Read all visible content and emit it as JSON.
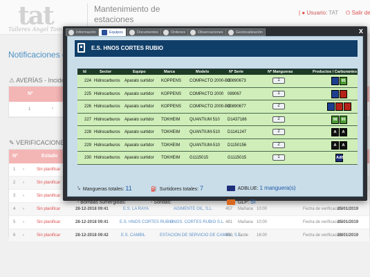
{
  "header": {
    "logo_mark": "tat",
    "logo_sub": "Talleres Angel Tom",
    "app_title": "Mantenimiento de estaciones",
    "user_label": "Usuario:",
    "user_value": "TAT",
    "exit_label": "Salir de"
  },
  "page": {
    "heading": "Notificaciones d",
    "averias_title": "AVERÍAS - Incide",
    "averias_col": "Nº",
    "averias_row_num": "1",
    "verif_title": "VERIFICACIONES",
    "verif_cols": [
      "Nº",
      "Estado"
    ],
    "verif_rows": [
      {
        "n": "1",
        "estado": "Sin planificar"
      },
      {
        "n": "2",
        "estado": "Sin planificar"
      },
      {
        "n": "3",
        "estado": "Sin planificar"
      },
      {
        "n": "4",
        "estado": "Sin planificar",
        "fecha": "28-12-2018 09:41",
        "estacion": "E.S. LA RAYA",
        "empresa": "AGIMENTE OIL, S.L.",
        "num": "457",
        "turno": "Mañana",
        "hora": "10:00",
        "verif_label": "Fecha de verificación:",
        "verif_fecha": "25/01/2019"
      },
      {
        "n": "5",
        "estado": "Sin planificar",
        "fecha": "28-12-2018 09:41",
        "estacion": "E.S. HNOS CORTES RUBIO",
        "empresa": "HNOS. CORTES RUBIO S.L.",
        "num": "481",
        "turno": "Mañana",
        "hora": "10:00",
        "verif_label": "Fecha de verificación:",
        "verif_fecha": "25/01/2019"
      },
      {
        "n": "6",
        "estado": "Sin planificar",
        "fecha": "28-12-2018 09:42",
        "estacion": "E.S. CAMBIL",
        "empresa": "ESTACION DE SERVICIO DE CAMBIL, S.L.",
        "num": "459",
        "turno": "Tarde",
        "hora": "16:00",
        "verif_label": "Fecha de verificación:",
        "verif_fecha": "28/01/2019"
      }
    ]
  },
  "modal": {
    "tabs": [
      {
        "label": "Información",
        "icon": "info-icon",
        "active": false
      },
      {
        "label": "Equipos",
        "icon": "pump-icon",
        "active": true
      },
      {
        "label": "Documentos",
        "icon": "document-icon",
        "active": false
      },
      {
        "label": "Ordenes",
        "icon": "wrench-icon",
        "active": false
      },
      {
        "label": "Observaciones",
        "icon": "document-icon",
        "active": false
      },
      {
        "label": "Geolocalización",
        "icon": "map-pin-icon",
        "active": false
      }
    ],
    "close_label": "x",
    "station_name": "E.S. HNOS CORTES RUBIO",
    "columns": [
      "Id",
      "Sector",
      "Equipo",
      "Marca",
      "Modelo",
      "Nº Serie",
      "Nº Mangueras",
      "Productos / Carburantes"
    ],
    "rows": [
      {
        "id": "224",
        "sector": "Hidrocarburos",
        "equipo": "Aparato surtidor",
        "marca": "KOPPENS",
        "modelo": "COMPACTO 2000-BG",
        "serie": "00890673",
        "mangueras": "1",
        "fuels": [
          {
            "color": "#1e3f8f",
            "text": ""
          },
          {
            "color": "#4a9a32",
            "text": "95"
          }
        ]
      },
      {
        "id": "225",
        "sector": "Hidrocarburos",
        "equipo": "Aparato surtidor",
        "marca": "KOPPENS",
        "modelo": "COMPACTO 2000",
        "serie": "089067",
        "mangueras": "1",
        "fuels": [
          {
            "color": "#1e3f8f",
            "text": ""
          },
          {
            "color": "#b52318",
            "text": ""
          }
        ]
      },
      {
        "id": "226",
        "sector": "Hidrocarburos",
        "equipo": "Aparato surtidor",
        "marca": "KOPPENS",
        "modelo": "COMPACTO 2000-BG",
        "serie": "00890677",
        "mangueras": "2",
        "fuels": [
          {
            "color": "#1e3f8f",
            "text": ""
          },
          {
            "color": "#b52318",
            "text": ""
          },
          {
            "color": "#b52318",
            "text": ""
          }
        ]
      },
      {
        "id": "227",
        "sector": "Hidrocarburos",
        "equipo": "Aparato surtidor",
        "marca": "TOKHEIM",
        "modelo": "QUANTIUM 510",
        "serie": "D1437186",
        "mangueras": "2",
        "fuels": [
          {
            "color": "#4a9a32",
            "text": "98"
          },
          {
            "color": "#4a9a32",
            "text": "95"
          }
        ]
      },
      {
        "id": "228",
        "sector": "Hidrocarburos",
        "equipo": "Aparato surtidor",
        "marca": "TOKHEIM",
        "modelo": "QUANTIUM-510",
        "serie": "D1141247",
        "mangueras": "2",
        "fuels": [
          {
            "color": "#111111",
            "text": "A"
          },
          {
            "color": "#111111",
            "text": "A"
          }
        ]
      },
      {
        "id": "229",
        "sector": "Hidrocarburos",
        "equipo": "Aparato surtidor",
        "marca": "TOKHEIM",
        "modelo": "QUANTIUM-510",
        "serie": "D1150156",
        "mangueras": "2",
        "fuels": [
          {
            "color": "#111111",
            "text": "A"
          },
          {
            "color": "#111111",
            "text": "A"
          }
        ]
      },
      {
        "id": "230",
        "sector": "Hidrocarburos",
        "equipo": "Aparato surtidor",
        "marca": "TOKHEIM",
        "modelo": "G1115015",
        "serie": "G1115015",
        "mangueras": "1",
        "fuels": [
          {
            "color": "#1d2f7a",
            "text": "AdB"
          }
        ]
      }
    ],
    "summary": {
      "mangueras_label": "Mangueras totales:",
      "mangueras_value": "11",
      "surtidores_label": "Surtidores totales:",
      "surtidores_value": "7",
      "adblue_label": "ADBLUE:",
      "adblue_value": "1 manguera(s)",
      "bombas_label": "- Bombas sumergidas:",
      "sondas_label": "- Sondas:",
      "glp_label": "GLP:",
      "glp_value": "SI"
    }
  }
}
